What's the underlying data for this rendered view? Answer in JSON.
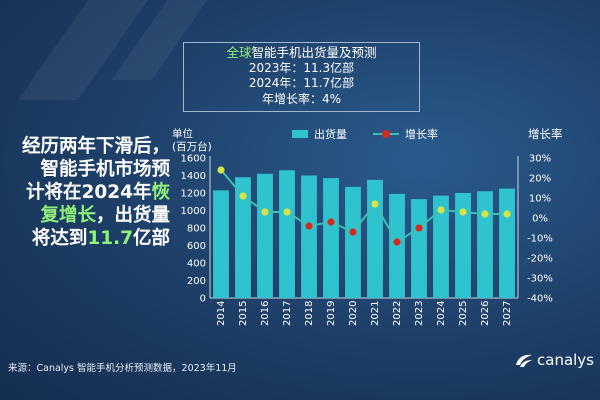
{
  "forecast_box": {
    "title_highlight": "全球",
    "title_rest": "智能手机出货量及预测",
    "line1": "2023年：11.3亿部",
    "line2": "2024年：11.7亿部",
    "line3": "年增长率：4%"
  },
  "headline": {
    "l1": "经历两年下滑后，",
    "l2": "智能手机市场预",
    "l3_a": "计将在2024年",
    "l3_b": "恢",
    "l4_a": "复增长",
    "l4_b": "，出货量",
    "l5_a": "将达到",
    "l5_b": "11.7",
    "l5_c": "亿部"
  },
  "source": "来源：Canalys 智能手机分析预测数据，2023年11月",
  "logo_text": "canalys",
  "colors": {
    "bar": "#2fc3cf",
    "line": "#3dbfb3",
    "marker_up": "#d8e34a",
    "marker_down": "#d6281e",
    "highlight": "#8ff07a"
  },
  "chart_data": {
    "type": "bar",
    "categories": [
      "2014",
      "2015",
      "2016",
      "2017",
      "2018",
      "2019",
      "2020",
      "2021",
      "2022",
      "2023",
      "2024",
      "2025",
      "2026",
      "2027"
    ],
    "series": [
      {
        "name": "出货量",
        "type": "bar",
        "axis": "left",
        "values": [
          1230,
          1380,
          1420,
          1460,
          1400,
          1370,
          1270,
          1350,
          1190,
          1130,
          1170,
          1200,
          1220,
          1250
        ]
      },
      {
        "name": "增长率",
        "type": "line",
        "axis": "right",
        "values": [
          24,
          11,
          3,
          3,
          -4,
          -2,
          -7,
          7,
          -12,
          -5,
          4,
          3,
          2,
          2
        ]
      }
    ],
    "ylabel_left": [
      "单位",
      "(百万台)"
    ],
    "ylabel_right": "增长率",
    "ylim_left": [
      0,
      1600
    ],
    "yticks_left": [
      "0",
      "200",
      "400",
      "600",
      "800",
      "1000",
      "1200",
      "1400",
      "1600"
    ],
    "ylim_right": [
      -40,
      30
    ],
    "yticks_right": [
      "-40%",
      "-30%",
      "-20%",
      "-10%",
      "0%",
      "10%",
      "20%",
      "30%"
    ],
    "legend_position": "top"
  }
}
